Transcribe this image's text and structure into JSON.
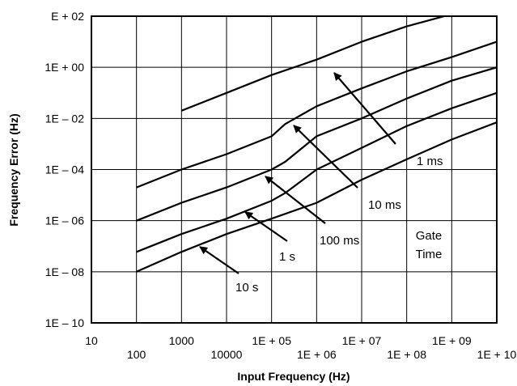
{
  "chart_data": {
    "type": "line",
    "xlabel": "Input Frequency (Hz)",
    "ylabel": "Frequency Error (Hz)",
    "x_scale": "log10",
    "y_scale": "log10",
    "xlim": [
      10,
      10000000000
    ],
    "ylim": [
      1e-10,
      100
    ],
    "grid": true,
    "x_tick_labels": [
      "10",
      "100",
      "1000",
      "10000",
      "1E + 05",
      "1E + 06",
      "1E + 07",
      "1E + 08",
      "1E + 09",
      "1E + 10"
    ],
    "y_tick_labels": [
      "E + 02",
      "1E + 00",
      "1E – 02",
      "1E – 04",
      "1E – 06",
      "1E – 08",
      "1E – 10"
    ],
    "series": [
      {
        "name": "1 ms",
        "x": [
          1000,
          10000,
          100000,
          1000000,
          10000000,
          100000000,
          1000000000
        ],
        "y": [
          0.02,
          0.1,
          0.5,
          2,
          10,
          40,
          120
        ]
      },
      {
        "name": "10 ms",
        "x": [
          100,
          1000,
          10000,
          100000,
          200000,
          1000000,
          10000000,
          100000000,
          1000000000,
          10000000000
        ],
        "y": [
          2e-05,
          0.0001,
          0.0004,
          0.002,
          0.006,
          0.03,
          0.15,
          0.7,
          2.5,
          10
        ]
      },
      {
        "name": "100 ms",
        "x": [
          100,
          1000,
          10000,
          100000,
          200000,
          1000000,
          10000000,
          100000000,
          1000000000,
          10000000000
        ],
        "y": [
          1e-06,
          5e-06,
          2e-05,
          0.0001,
          0.0002,
          0.002,
          0.01,
          0.06,
          0.3,
          1
        ]
      },
      {
        "name": "1 s",
        "x": [
          100,
          1000,
          10000,
          100000,
          200000,
          1000000,
          10000000,
          100000000,
          1000000000,
          10000000000
        ],
        "y": [
          6e-08,
          3e-07,
          1.2e-06,
          6e-06,
          1.2e-05,
          0.0001,
          0.0007,
          0.005,
          0.025,
          0.1
        ]
      },
      {
        "name": "10 s",
        "x": [
          100,
          1000,
          10000,
          100000,
          1000000,
          10000000,
          100000000,
          1000000000,
          10000000000
        ],
        "y": [
          1e-08,
          6e-08,
          3e-07,
          1.2e-06,
          5e-06,
          4e-05,
          0.00025,
          0.0015,
          0.007
        ]
      }
    ],
    "annotations": [
      {
        "text": "1 ms",
        "series": "1 ms"
      },
      {
        "text": "10 ms",
        "series": "10 ms"
      },
      {
        "text": "100 ms",
        "series": "100 ms"
      },
      {
        "text": "1 s",
        "series": "1 s"
      },
      {
        "text": "10 s",
        "series": "10 s"
      },
      {
        "text": "Gate"
      },
      {
        "text": "Time"
      }
    ]
  }
}
